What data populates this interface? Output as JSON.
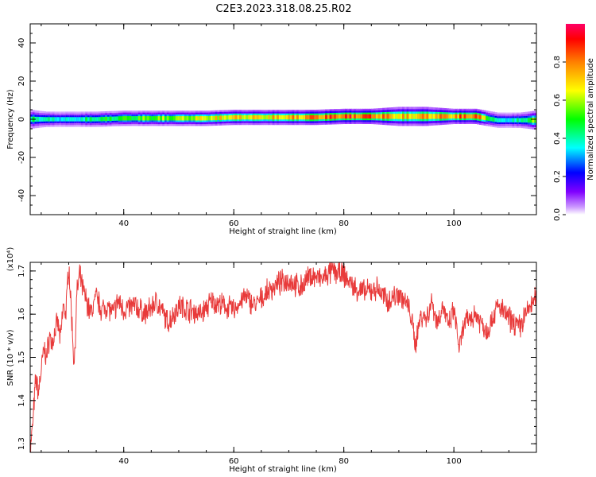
{
  "title": "C2E3.2023.318.08.25.R02",
  "chart_data": [
    {
      "type": "heatmap",
      "xlabel": "Height of straight line (km)",
      "ylabel": "Frequency (Hz)",
      "xlim": [
        23,
        115
      ],
      "ylim": [
        -50,
        50
      ],
      "xticks": [
        40,
        60,
        80,
        100
      ],
      "yticks": [
        -40,
        -20,
        0,
        20,
        40
      ],
      "colorbar": {
        "label": "Normalized spectral amplitude",
        "range": [
          0,
          1
        ],
        "ticks": [
          "0.0",
          "0.2",
          "0.4",
          "0.6",
          "0.8"
        ]
      },
      "band": [
        {
          "x": 23,
          "center": 0,
          "halfwidth": 5,
          "peak": 0.45
        },
        {
          "x": 26,
          "center": 0,
          "halfwidth": 4,
          "peak": 0.4
        },
        {
          "x": 30,
          "center": 0,
          "halfwidth": 4,
          "peak": 0.35
        },
        {
          "x": 35,
          "center": 0,
          "halfwidth": 4,
          "peak": 0.45
        },
        {
          "x": 40,
          "center": 0.5,
          "halfwidth": 4,
          "peak": 0.5
        },
        {
          "x": 45,
          "center": 0.5,
          "halfwidth": 4,
          "peak": 0.55
        },
        {
          "x": 50,
          "center": 0.5,
          "halfwidth": 4,
          "peak": 0.58
        },
        {
          "x": 55,
          "center": 0.5,
          "halfwidth": 4,
          "peak": 0.65
        },
        {
          "x": 60,
          "center": 1,
          "halfwidth": 4,
          "peak": 0.7
        },
        {
          "x": 65,
          "center": 1,
          "halfwidth": 4,
          "peak": 0.68
        },
        {
          "x": 70,
          "center": 1,
          "halfwidth": 4,
          "peak": 0.72
        },
        {
          "x": 75,
          "center": 1,
          "halfwidth": 4,
          "peak": 0.82
        },
        {
          "x": 80,
          "center": 1.5,
          "halfwidth": 4,
          "peak": 0.85
        },
        {
          "x": 85,
          "center": 1.5,
          "halfwidth": 4,
          "peak": 0.85
        },
        {
          "x": 90,
          "center": 1.5,
          "halfwidth": 5,
          "peak": 0.7
        },
        {
          "x": 95,
          "center": 1.5,
          "halfwidth": 5,
          "peak": 0.75
        },
        {
          "x": 100,
          "center": 1.5,
          "halfwidth": 4,
          "peak": 0.78
        },
        {
          "x": 104,
          "center": 1.5,
          "halfwidth": 4,
          "peak": 0.85
        },
        {
          "x": 108,
          "center": -0.5,
          "halfwidth": 4,
          "peak": 0.35
        },
        {
          "x": 112,
          "center": -0.5,
          "halfwidth": 4,
          "peak": 0.4
        },
        {
          "x": 115,
          "center": -0.5,
          "halfwidth": 5,
          "peak": 0.6
        }
      ]
    },
    {
      "type": "line",
      "xlabel": "Height of straight line (km)",
      "ylabel": "SNR (10 * v/v)",
      "multiplier": "(x10⁴)",
      "xlim": [
        23,
        115
      ],
      "ylim": [
        1.28,
        1.72
      ],
      "xticks": [
        40,
        60,
        80,
        100
      ],
      "yticks": [
        1.3,
        1.4,
        1.5,
        1.6,
        1.7
      ],
      "color": "#e83a3a",
      "series": [
        {
          "x": [
            23,
            23.5,
            24,
            24.5,
            25,
            25.5,
            26,
            26.5,
            27,
            27.5,
            28,
            28.5,
            29,
            29.5,
            30,
            30.5,
            31,
            31.5,
            32,
            32.5,
            33,
            34,
            35,
            36,
            37,
            38,
            39,
            40,
            42,
            44,
            46,
            48,
            50,
            52,
            54,
            56,
            58,
            60,
            62,
            64,
            66,
            68,
            70,
            72,
            74,
            76,
            78,
            80,
            82,
            84,
            86,
            88,
            90,
            92,
            93,
            94,
            95,
            96,
            97,
            98,
            99,
            100,
            101,
            102,
            104,
            106,
            108,
            110,
            112,
            113,
            114,
            115
          ],
          "y": [
            1.28,
            1.35,
            1.45,
            1.42,
            1.47,
            1.52,
            1.5,
            1.55,
            1.53,
            1.56,
            1.58,
            1.54,
            1.62,
            1.6,
            1.72,
            1.6,
            1.48,
            1.65,
            1.69,
            1.66,
            1.64,
            1.6,
            1.64,
            1.61,
            1.62,
            1.6,
            1.63,
            1.61,
            1.62,
            1.6,
            1.63,
            1.58,
            1.62,
            1.61,
            1.6,
            1.63,
            1.62,
            1.61,
            1.64,
            1.62,
            1.65,
            1.67,
            1.68,
            1.66,
            1.69,
            1.68,
            1.7,
            1.69,
            1.66,
            1.65,
            1.66,
            1.63,
            1.65,
            1.61,
            1.53,
            1.6,
            1.59,
            1.63,
            1.58,
            1.62,
            1.57,
            1.61,
            1.52,
            1.58,
            1.6,
            1.56,
            1.62,
            1.59,
            1.57,
            1.6,
            1.62,
            1.64
          ]
        }
      ]
    }
  ]
}
